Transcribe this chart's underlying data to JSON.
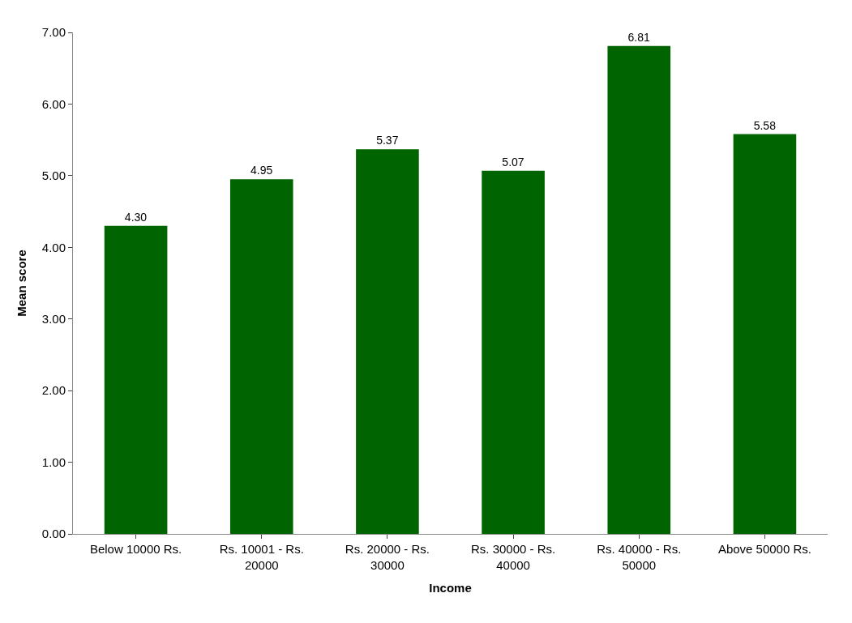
{
  "chart_data": {
    "type": "bar",
    "xlabel": "Income",
    "ylabel": "Mean score",
    "categories": [
      "Below 10000 Rs.",
      "Rs. 10001 - Rs. 20000",
      "Rs. 20000 - Rs. 30000",
      "Rs. 30000 - Rs. 40000",
      "Rs. 40000 - Rs. 50000",
      "Above 50000 Rs."
    ],
    "values": [
      4.3,
      4.95,
      5.37,
      5.07,
      6.81,
      5.58
    ],
    "value_labels": [
      "4.30",
      "4.95",
      "5.37",
      "5.07",
      "6.81",
      "5.58"
    ],
    "color": "#006400",
    "ylim": [
      0,
      7
    ],
    "yticks": [
      {
        "value": 0,
        "label": "0.00"
      },
      {
        "value": 1,
        "label": "1.00"
      },
      {
        "value": 2,
        "label": "2.00"
      },
      {
        "value": 3,
        "label": "3.00"
      },
      {
        "value": 4,
        "label": "4.00"
      },
      {
        "value": 5,
        "label": "5.00"
      },
      {
        "value": 6,
        "label": "6.00"
      },
      {
        "value": 7,
        "label": "7.00"
      }
    ],
    "grid": false
  }
}
